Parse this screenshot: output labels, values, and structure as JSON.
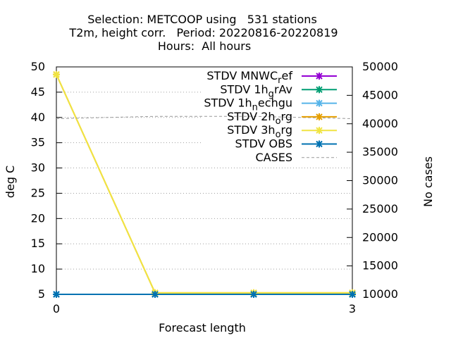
{
  "chart_data": {
    "type": "line",
    "title_lines": [
      "Selection: METCOOP using   531 stations",
      "T2m, height corr.   Period: 20220816-20220819",
      "Hours:  All hours"
    ],
    "xlabel": "Forecast length",
    "ylabel": "deg C",
    "y2label": "No cases",
    "xlim": [
      0,
      3
    ],
    "ylim": [
      5,
      50
    ],
    "y2lim": [
      10000,
      50000
    ],
    "xticks": [
      "0",
      "3"
    ],
    "yticks": [
      5,
      10,
      15,
      20,
      25,
      30,
      35,
      40,
      45,
      50
    ],
    "y2ticks": [
      10000,
      15000,
      20000,
      25000,
      30000,
      35000,
      40000,
      45000,
      50000
    ],
    "grid": "horizontal dotted",
    "legend_position": "top-right",
    "x": [
      0,
      1,
      2,
      3
    ],
    "series": [
      {
        "name": "STDV MNWC_ref",
        "legend_main": "STDV MNWC",
        "legend_sub": "r",
        "legend_rest": "ef",
        "color": "#9400d3",
        "axis": "y",
        "values": [
          5.0,
          5.0,
          5.0,
          5.0
        ]
      },
      {
        "name": "STDV 1h_grAv",
        "legend_main": "STDV 1h",
        "legend_sub": "g",
        "legend_rest": "rAv",
        "color": "#009e73",
        "axis": "y",
        "values": [
          5.0,
          5.0,
          5.0,
          5.0
        ]
      },
      {
        "name": "STDV 1h_nechgu",
        "legend_main": "STDV 1h",
        "legend_sub": "n",
        "legend_rest": "echgu",
        "color": "#56b4e9",
        "axis": "y",
        "values": [
          5.0,
          5.0,
          5.0,
          5.0
        ]
      },
      {
        "name": "STDV 2h_org",
        "legend_main": "STDV 2h",
        "legend_sub": "o",
        "legend_rest": "rg",
        "color": "#e69f00",
        "axis": "y",
        "values": [
          48.5,
          5.3,
          5.3,
          5.3
        ]
      },
      {
        "name": "STDV 3h_org",
        "legend_main": "STDV 3h",
        "legend_sub": "o",
        "legend_rest": "rg",
        "color": "#f0e442",
        "axis": "y",
        "values": [
          48.5,
          5.3,
          5.3,
          5.3
        ]
      },
      {
        "name": "STDV OBS",
        "legend_main": "STDV OBS",
        "legend_sub": "",
        "legend_rest": "",
        "color": "#0072b2",
        "axis": "y",
        "values": [
          5.0,
          5.0,
          5.0,
          5.0
        ]
      },
      {
        "name": "CASES",
        "legend_main": "CASES",
        "legend_sub": "",
        "legend_rest": "",
        "color": "#999999",
        "axis": "y2",
        "dashed": true,
        "values": [
          40900,
          41300,
          41300,
          40900
        ]
      }
    ]
  }
}
